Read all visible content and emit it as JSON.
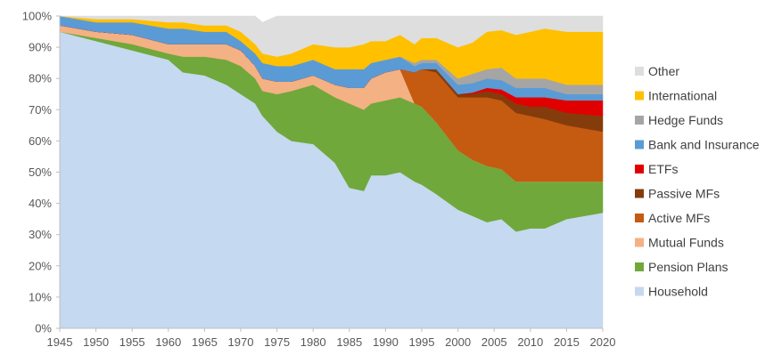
{
  "chart_data": {
    "type": "area",
    "stacked": true,
    "title": "",
    "xlabel": "",
    "ylabel": "",
    "xlim": [
      1945,
      2020
    ],
    "ylim": [
      0,
      100
    ],
    "x_ticks": [
      1945,
      1950,
      1955,
      1960,
      1965,
      1970,
      1975,
      1980,
      1985,
      1990,
      1995,
      2000,
      2005,
      2010,
      2015,
      2020
    ],
    "y_ticks": [
      "0%",
      "10%",
      "20%",
      "30%",
      "40%",
      "50%",
      "60%",
      "70%",
      "80%",
      "90%",
      "100%"
    ],
    "legend_position": "right",
    "x": [
      1945,
      1950,
      1955,
      1960,
      1962,
      1965,
      1968,
      1970,
      1972,
      1973,
      1975,
      1977,
      1980,
      1983,
      1985,
      1987,
      1988,
      1990,
      1992,
      1994,
      1995,
      1997,
      2000,
      2002,
      2004,
      2006,
      2008,
      2010,
      2012,
      2015,
      2020
    ],
    "series": [
      {
        "name": "Household",
        "color": "#c5d9f0",
        "values": [
          95,
          92,
          89,
          86,
          82,
          81,
          78,
          75,
          72,
          68,
          63,
          60,
          59,
          53,
          45,
          44,
          49,
          49,
          50,
          47,
          46,
          43,
          38,
          36,
          34,
          35,
          31,
          32,
          32,
          35,
          37
        ]
      },
      {
        "name": "Pension Plans",
        "color": "#70a83b",
        "values": [
          0,
          1,
          2,
          2,
          5,
          6,
          8,
          9,
          8,
          8,
          12,
          16,
          19,
          21,
          27,
          26,
          23,
          24,
          24,
          25,
          25,
          23,
          19,
          18,
          18,
          16,
          16,
          15,
          15,
          12,
          10
        ]
      },
      {
        "name": "Mutual Funds",
        "color": "#f4b183",
        "values": [
          2,
          2,
          3,
          3,
          4,
          4,
          5,
          5,
          4,
          4,
          4,
          3,
          3,
          4,
          5,
          7,
          8,
          9,
          9,
          0,
          0,
          0,
          0,
          0,
          0,
          0,
          0,
          0,
          0,
          0,
          0
        ]
      },
      {
        "name": "Active MFs",
        "color": "#c55a11",
        "values": [
          0,
          0,
          0,
          0,
          0,
          0,
          0,
          0,
          0,
          0,
          0,
          0,
          0,
          0,
          0,
          0,
          0,
          0,
          0,
          10,
          12,
          16,
          17,
          20,
          22,
          22,
          22,
          21,
          20,
          18,
          16
        ]
      },
      {
        "name": "Passive MFs",
        "color": "#843c0c",
        "values": [
          0,
          0,
          0,
          0,
          0,
          0,
          0,
          0,
          0,
          0,
          0,
          0,
          0,
          0,
          0,
          0,
          0,
          0,
          0,
          0,
          0,
          1,
          1,
          1,
          2,
          2,
          3,
          3,
          4,
          4,
          5
        ]
      },
      {
        "name": "ETFs",
        "color": "#e00000",
        "values": [
          0,
          0,
          0,
          0,
          0,
          0,
          0,
          0,
          0,
          0,
          0,
          0,
          0,
          0,
          0,
          0,
          0,
          0,
          0,
          0,
          0,
          0,
          0,
          0.5,
          1,
          1.5,
          2,
          3,
          3,
          4,
          5
        ]
      },
      {
        "name": "Bank and Insurance",
        "color": "#5b9bd5",
        "values": [
          3,
          3,
          4,
          5,
          5,
          4,
          4,
          3,
          4,
          5,
          5,
          5,
          5,
          5,
          6,
          6,
          5,
          4,
          4,
          2,
          2,
          2,
          3,
          3,
          3,
          3,
          3,
          3,
          3,
          2,
          2
        ]
      },
      {
        "name": "Hedge Funds",
        "color": "#a5a5a5",
        "values": [
          0,
          0,
          0,
          0,
          0,
          0,
          0,
          0,
          0,
          0,
          0,
          0,
          0,
          0,
          0,
          0,
          0,
          0,
          0,
          1,
          1,
          1,
          2,
          3,
          3,
          4,
          3,
          3,
          3,
          3,
          3
        ]
      },
      {
        "name": "International",
        "color": "#ffc000",
        "values": [
          0,
          1,
          1,
          2,
          2,
          2,
          2,
          3,
          3,
          3,
          3,
          4,
          5,
          7,
          7,
          8,
          7,
          6,
          7,
          6,
          7,
          7,
          10,
          10,
          12,
          12,
          14,
          15,
          16,
          17,
          17
        ]
      },
      {
        "name": "Other",
        "color": "#dedede",
        "values": [
          0,
          1,
          1,
          2,
          2,
          3,
          3,
          5,
          9,
          10,
          13,
          12,
          9,
          10,
          10,
          9,
          8,
          8,
          6,
          9,
          7,
          7,
          10,
          8.5,
          5,
          4.5,
          6,
          5,
          4,
          5,
          5
        ]
      }
    ]
  }
}
